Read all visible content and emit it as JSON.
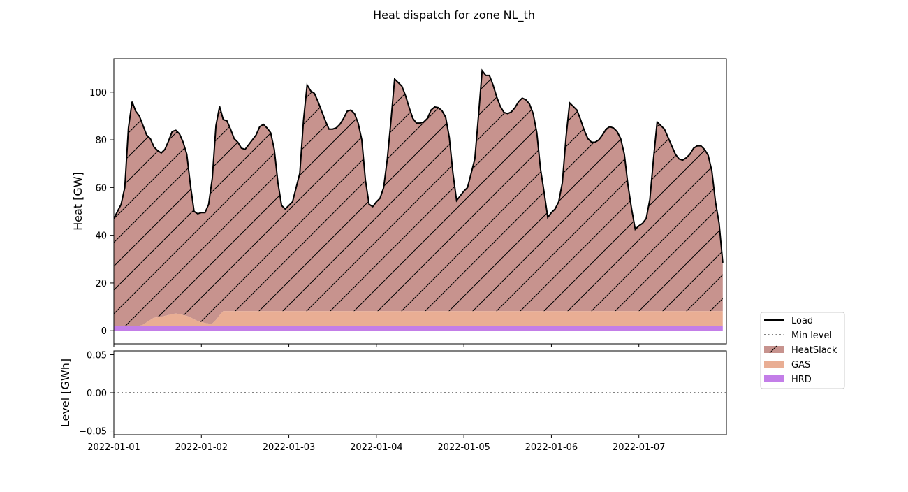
{
  "figure_title": "Heat dispatch for zone NL_th",
  "chart_data": [
    {
      "type": "area",
      "stacked": true,
      "title": "",
      "xlabel": "",
      "ylabel": "Heat [GW]",
      "x_start": "2022-01-01T00:00",
      "x_step_hours": 1,
      "xlim": [
        "2022-01-01",
        "2022-01-08"
      ],
      "ylim": [
        -5.5,
        114
      ],
      "yticks": [
        0,
        20,
        40,
        60,
        80,
        100
      ],
      "grid": false,
      "series": [
        {
          "name": "HRD",
          "color": "#c37ee8",
          "hatch": false,
          "values": [
            2,
            2,
            2,
            2,
            2,
            2,
            2,
            2,
            2,
            2,
            2,
            2,
            2,
            2,
            2,
            2,
            2,
            2,
            2,
            2,
            2,
            2,
            2,
            2,
            2,
            2,
            2,
            2,
            2,
            2,
            2,
            2,
            2,
            2,
            2,
            2,
            2,
            2,
            2,
            2,
            2,
            2,
            2,
            2,
            2,
            2,
            2,
            2,
            2,
            2,
            2,
            2,
            2,
            2,
            2,
            2,
            2,
            2,
            2,
            2,
            2,
            2,
            2,
            2,
            2,
            2,
            2,
            2,
            2,
            2,
            2,
            2,
            2,
            2,
            2,
            2,
            2,
            2,
            2,
            2,
            2,
            2,
            2,
            2,
            2,
            2,
            2,
            2,
            2,
            2,
            2,
            2,
            2,
            2,
            2,
            2,
            2,
            2,
            2,
            2,
            2,
            2,
            2,
            2,
            2,
            2,
            2,
            2,
            2,
            2,
            2,
            2,
            2,
            2,
            2,
            2,
            2,
            2,
            2,
            2,
            2,
            2,
            2,
            2,
            2,
            2,
            2,
            2,
            2,
            2,
            2,
            2,
            2,
            2,
            2,
            2,
            2,
            2,
            2,
            2,
            2,
            2,
            2,
            2,
            2,
            2,
            2,
            2,
            2,
            2,
            2,
            2,
            2,
            2,
            2,
            2,
            2,
            2,
            2,
            2,
            2,
            2,
            2,
            2,
            2,
            2,
            2,
            2
          ]
        },
        {
          "name": "GAS",
          "color": "#e9ae94",
          "hatch": false,
          "values": [
            0,
            0,
            0,
            0,
            0,
            0,
            0,
            0,
            0.5,
            1.5,
            2.5,
            3.5,
            3.6,
            3.8,
            4.2,
            4.6,
            5.0,
            5.2,
            5.0,
            4.6,
            4.2,
            3.6,
            2.8,
            2.0,
            1.6,
            1.2,
            1.0,
            1.0,
            2.5,
            4.5,
            6.2,
            6.2,
            6.2,
            6.2,
            6.2,
            6.2,
            6.2,
            6.2,
            6.2,
            6.2,
            6.2,
            6.2,
            6.2,
            6.2,
            6.2,
            6.2,
            6.2,
            6.2,
            6.2,
            6.2,
            6.2,
            6.2,
            6.2,
            6.2,
            6.2,
            6.2,
            6.2,
            6.2,
            6.2,
            6.2,
            6.2,
            6.2,
            6.2,
            6.2,
            6.2,
            6.2,
            6.2,
            6.2,
            6.2,
            6.2,
            6.2,
            6.2,
            6.2,
            6.2,
            6.2,
            6.2,
            6.2,
            6.2,
            6.2,
            6.2,
            6.2,
            6.2,
            6.2,
            6.2,
            6.2,
            6.2,
            6.2,
            6.2,
            6.2,
            6.2,
            6.2,
            6.2,
            6.2,
            6.2,
            6.2,
            6.2,
            6.2,
            6.2,
            6.2,
            6.2,
            6.2,
            6.2,
            6.2,
            6.2,
            6.2,
            6.2,
            6.2,
            6.2,
            6.2,
            6.2,
            6.2,
            6.2,
            6.2,
            6.2,
            6.2,
            6.2,
            6.2,
            6.2,
            6.2,
            6.2,
            6.2,
            6.2,
            6.2,
            6.2,
            6.2,
            6.2,
            6.2,
            6.2,
            6.2,
            6.2,
            6.2,
            6.2,
            6.2,
            6.2,
            6.2,
            6.2,
            6.2,
            6.2,
            6.2,
            6.2,
            6.2,
            6.2,
            6.2,
            6.2,
            6.2,
            6.2,
            6.2,
            6.2,
            6.2,
            6.2,
            6.2,
            6.2,
            6.2,
            6.2,
            6.2,
            6.2,
            6.2,
            6.2,
            6.2,
            6.2,
            6.2,
            6.2,
            6.2,
            6.2,
            6.2,
            6.2,
            6.2,
            6.2,
            6.2,
            6.2,
            6.2,
            5.5,
            4.5,
            3.5,
            3.5,
            3.5
          ]
        },
        {
          "name": "HeatSlack",
          "color": "#c7938e",
          "hatch": true,
          "values_rule": "Load minus GAS minus HRD"
        }
      ],
      "load": {
        "name": "Load",
        "color": "#000000",
        "values": [
          47,
          50,
          53,
          60,
          85,
          96,
          92,
          90,
          86,
          82,
          80.5,
          77,
          75.5,
          74.5,
          76,
          79.5,
          83.5,
          84,
          82.5,
          79,
          74,
          61,
          50,
          49,
          49.5,
          49.5,
          53,
          64,
          86,
          94,
          88.5,
          88,
          84.5,
          80.5,
          79,
          76.5,
          76,
          78,
          80,
          82,
          85.5,
          86.5,
          85,
          83,
          76,
          62,
          52.5,
          51,
          52.5,
          54,
          60,
          66,
          88,
          103,
          100.5,
          99.5,
          96,
          92,
          88,
          84.5,
          84.5,
          85,
          86.5,
          89,
          92,
          92.5,
          91,
          87,
          80,
          63,
          53,
          52,
          54,
          55.5,
          60,
          72,
          88,
          105.5,
          104,
          102.5,
          98.5,
          93.5,
          89,
          87,
          87,
          87.5,
          89,
          92.5,
          93.8,
          93.5,
          92.2,
          89.5,
          81,
          66,
          54.5,
          56.5,
          58.5,
          60,
          66,
          72,
          90,
          109,
          107,
          107,
          103,
          98,
          94,
          91.5,
          91,
          91.7,
          93.5,
          96,
          97.5,
          96.8,
          95,
          91,
          83,
          68,
          58,
          47.5,
          49.5,
          51,
          54,
          62,
          81,
          95.5,
          94,
          92.5,
          88.5,
          84,
          80.5,
          79,
          79,
          80,
          82,
          84.5,
          85.5,
          85,
          83.5,
          80.5,
          74,
          61,
          51,
          42.5,
          44,
          45,
          47,
          55,
          72,
          87.5,
          86,
          84.5,
          81,
          77.5,
          74,
          72,
          71.5,
          72.5,
          74,
          76.5,
          77.5,
          77.5,
          76,
          73.5,
          67,
          54,
          45,
          28.5
        ]
      },
      "legend": {
        "position": "outside right",
        "entries": [
          "Load",
          "Min level",
          "HeatSlack",
          "GAS",
          "HRD"
        ]
      }
    },
    {
      "type": "line",
      "title": "",
      "xlabel": "",
      "ylabel": "Level [GWh]",
      "ylim": [
        -0.055,
        0.055
      ],
      "yticks": [
        -0.05,
        0.0,
        0.05
      ],
      "yticklabels": [
        "−0.05",
        "0.00",
        "0.05"
      ],
      "xticklabels": [
        "2022-01-01",
        "2022-01-02",
        "2022-01-03",
        "2022-01-04",
        "2022-01-05",
        "2022-01-06",
        "2022-01-07"
      ],
      "grid": false,
      "series": [
        {
          "name": "Min level",
          "color": "#808080",
          "style": "dotted",
          "values": [
            0,
            0
          ]
        }
      ]
    }
  ],
  "legend_entries": [
    {
      "label": "Load",
      "kind": "line",
      "color": "#000000"
    },
    {
      "label": "Min level",
      "kind": "dotted",
      "color": "#808080"
    },
    {
      "label": "HeatSlack",
      "kind": "hatched",
      "color": "#c7938e"
    },
    {
      "label": "GAS",
      "kind": "patch",
      "color": "#e9ae94"
    },
    {
      "label": "HRD",
      "kind": "patch",
      "color": "#c37ee8"
    }
  ]
}
